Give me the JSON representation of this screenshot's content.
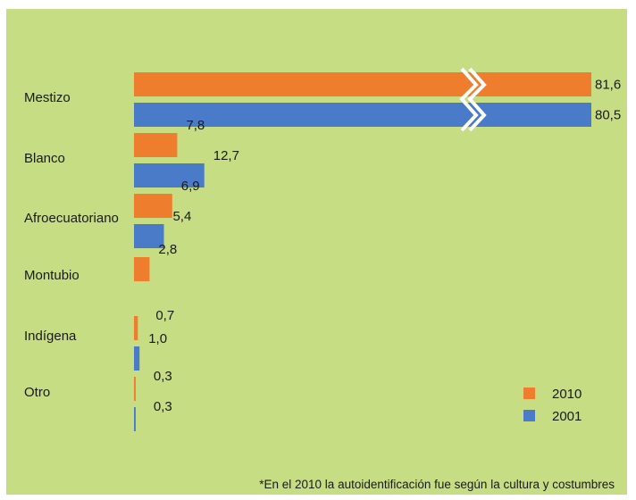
{
  "colors": {
    "background": "#c7dd83",
    "series_2010": "#ee7d2d",
    "series_2001": "#4a7bc8",
    "break_mark": "#ffffff"
  },
  "footnote": "*En el 2010 la autoidentificación fue según la cultura y costumbres",
  "chart_data": {
    "type": "bar",
    "orientation": "horizontal",
    "categories": [
      "Mestizo",
      "Blanco",
      "Afroecuatoriano",
      "Montubio",
      "Indígena",
      "Otro"
    ],
    "series": [
      {
        "name": "2010",
        "values": [
          81.6,
          7.8,
          6.9,
          2.8,
          0.7,
          0.3
        ],
        "labels": [
          "81,6",
          "7,8",
          "6,9",
          "2,8",
          "0,7",
          "0,3"
        ]
      },
      {
        "name": "2001",
        "values": [
          80.5,
          12.7,
          5.4,
          null,
          1.0,
          0.3
        ],
        "labels": [
          "80,5",
          "12,7",
          "5,4",
          "",
          "1,0",
          "0,3"
        ]
      }
    ],
    "axis_break": true,
    "xlim": [
      0,
      12.7
    ],
    "legend_position": "bottom-right",
    "grid": false,
    "title": "",
    "xlabel": "",
    "ylabel": ""
  }
}
